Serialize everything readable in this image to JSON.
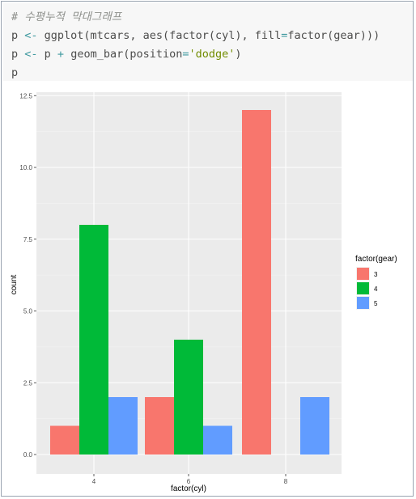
{
  "code": {
    "lines": [
      [
        {
          "t": "comment",
          "v": "# 수평누적 막대그래프"
        }
      ],
      [
        {
          "t": "plain",
          "v": "p "
        },
        {
          "t": "op",
          "v": "<-"
        },
        {
          "t": "plain",
          "v": " ggplot(mtcars, aes(factor(cyl), fill"
        },
        {
          "t": "op",
          "v": "="
        },
        {
          "t": "plain",
          "v": "factor(gear)))"
        }
      ],
      [
        {
          "t": "plain",
          "v": "p "
        },
        {
          "t": "op",
          "v": "<-"
        },
        {
          "t": "plain",
          "v": " p "
        },
        {
          "t": "op",
          "v": "+"
        },
        {
          "t": "plain",
          "v": " geom_bar(position"
        },
        {
          "t": "op",
          "v": "="
        },
        {
          "t": "str",
          "v": "'dodge'"
        },
        {
          "t": "plain",
          "v": ")"
        }
      ],
      [
        {
          "t": "plain",
          "v": "p"
        }
      ]
    ]
  },
  "chart_data": {
    "type": "bar",
    "position": "dodge",
    "xlabel": "factor(cyl)",
    "ylabel": "count",
    "categories": [
      "4",
      "6",
      "8"
    ],
    "series": [
      {
        "name": "3",
        "color": "#F8766D",
        "values": [
          1,
          2,
          12
        ]
      },
      {
        "name": "4",
        "color": "#00BA38",
        "values": [
          8,
          4,
          0
        ]
      },
      {
        "name": "5",
        "color": "#619CFF",
        "values": [
          2,
          1,
          2
        ]
      }
    ],
    "ylim": [
      0,
      12.5
    ],
    "yticks": [
      "0.0",
      "2.5",
      "5.0",
      "7.5",
      "10.0",
      "12.5"
    ],
    "legend": {
      "title": "factor(gear)",
      "position": "right"
    },
    "grid": true,
    "panel_background": "#EBEBEB"
  }
}
